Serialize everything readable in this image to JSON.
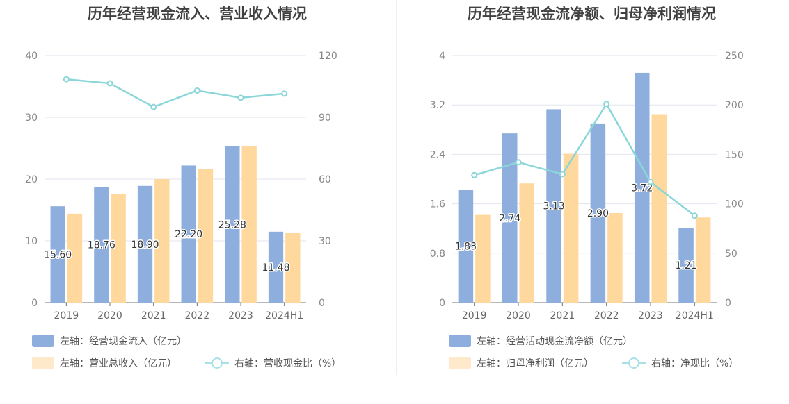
{
  "charts": [
    {
      "title": "历年经营现金流入、营业收入情况",
      "chart_data": {
        "type": "bar",
        "categories": [
          "2019",
          "2020",
          "2021",
          "2022",
          "2023",
          "2024H1"
        ],
        "left_axis": {
          "min": 0,
          "max": 40,
          "ticks": [
            "0",
            "10",
            "20",
            "30",
            "40"
          ]
        },
        "right_axis": {
          "min": 0,
          "max": 120,
          "ticks": [
            "0",
            "30",
            "60",
            "90",
            "120"
          ]
        },
        "series": [
          {
            "name": "左轴：经营现金流入（亿元）",
            "axis": "left",
            "type": "bar",
            "color": "#8eaedd",
            "values": [
              15.6,
              18.76,
              18.9,
              22.2,
              25.28,
              11.48
            ],
            "labels": [
              "15.60",
              "18.76",
              "18.90",
              "22.20",
              "25.28",
              "11.48"
            ]
          },
          {
            "name": "左轴：营业总收入（亿元）",
            "axis": "left",
            "type": "bar",
            "color": "#fed89c",
            "values": [
              14.4,
              17.6,
              20.0,
              21.6,
              25.4,
              11.3
            ]
          },
          {
            "name": "右轴：营收现金比（%）",
            "axis": "right",
            "type": "line",
            "color": "#8ad6d9",
            "values": [
              108.5,
              106.5,
              95.0,
              103.0,
              99.5,
              101.5
            ]
          }
        ],
        "grid": true,
        "legend": "bottom"
      }
    },
    {
      "title": "历年经营现金流净额、归母净利润情况",
      "chart_data": {
        "type": "bar",
        "categories": [
          "2019",
          "2020",
          "2021",
          "2022",
          "2023",
          "2024H1"
        ],
        "left_axis": {
          "min": 0,
          "max": 4,
          "ticks": [
            "0",
            "0.8",
            "1.6",
            "2.4",
            "3.2",
            "4"
          ]
        },
        "right_axis": {
          "min": 0,
          "max": 250,
          "ticks": [
            "0",
            "50",
            "100",
            "150",
            "200",
            "250"
          ]
        },
        "series": [
          {
            "name": "左轴：经营活动现金流净额（亿元）",
            "axis": "left",
            "type": "bar",
            "color": "#8eaedd",
            "values": [
              1.83,
              2.74,
              3.13,
              2.9,
              3.72,
              1.21
            ],
            "labels": [
              "1.83",
              "2.74",
              "3.13",
              "2.90",
              "3.72",
              "1.21"
            ]
          },
          {
            "name": "左轴：归母净利润（亿元）",
            "axis": "left",
            "type": "bar",
            "color": "#fed89c",
            "values": [
              1.42,
              1.93,
              2.41,
              1.45,
              3.05,
              1.38
            ]
          },
          {
            "name": "右轴：净现比（%）",
            "axis": "right",
            "type": "line",
            "color": "#8ad6d9",
            "values": [
              129,
              142,
              130,
              201,
              122,
              88
            ]
          }
        ],
        "grid": true,
        "legend": "bottom"
      }
    }
  ]
}
